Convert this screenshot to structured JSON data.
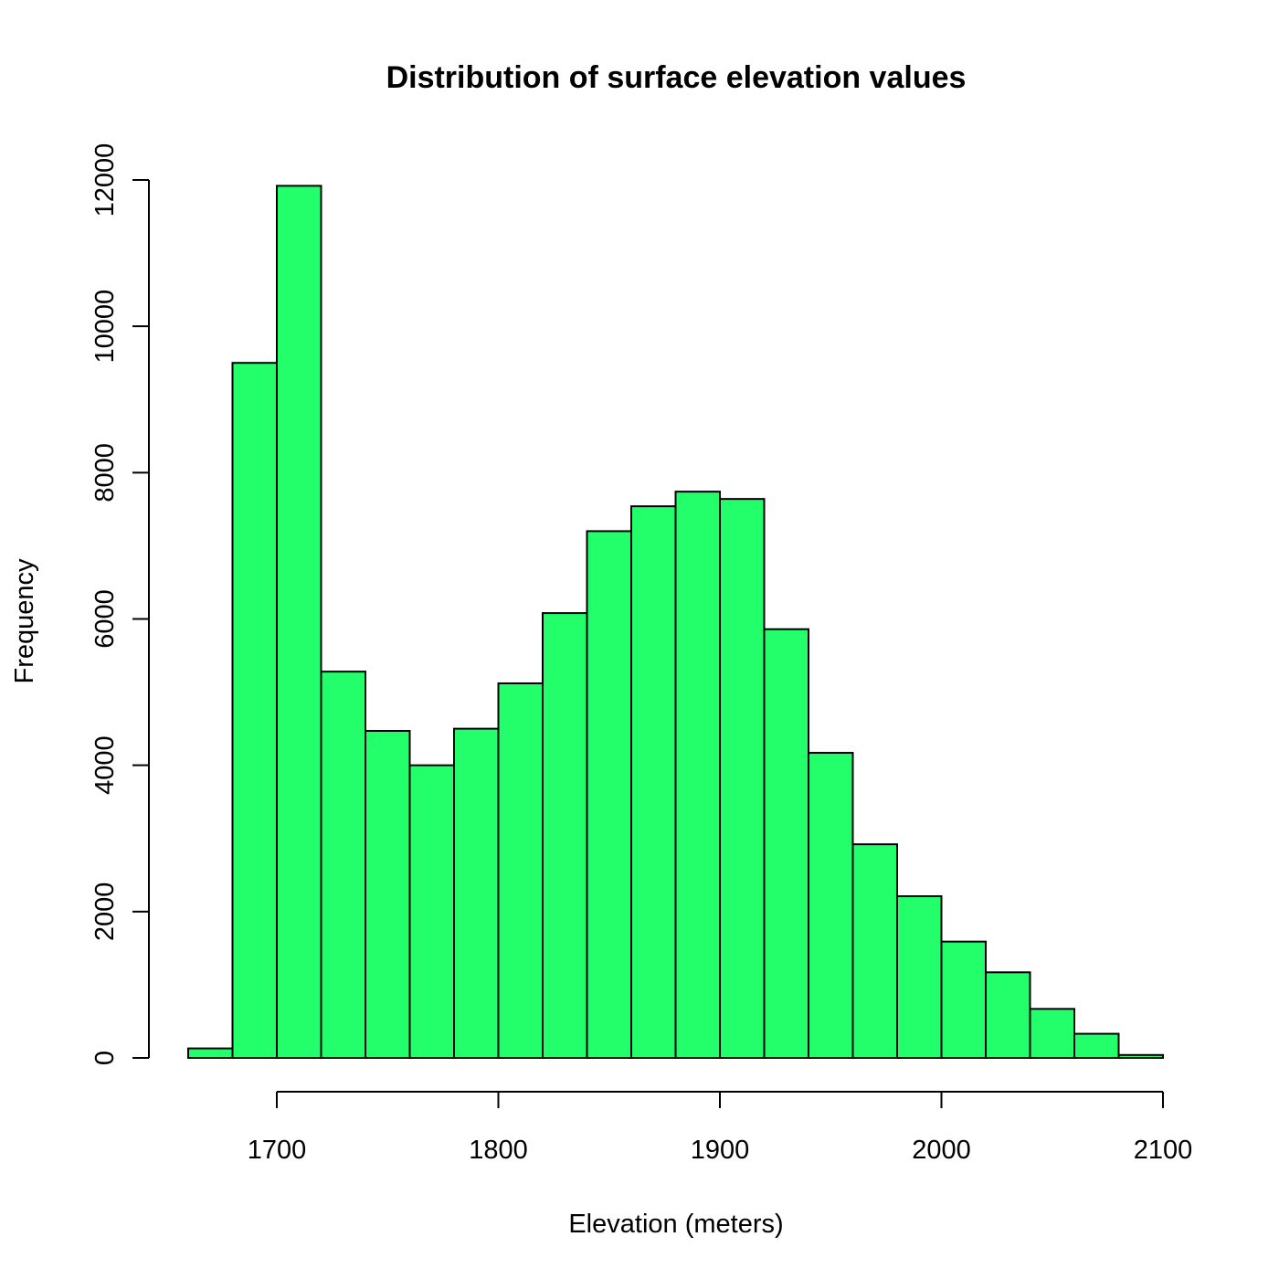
{
  "chart_data": {
    "type": "bar",
    "title": "Distribution of surface elevation values",
    "xlabel": "Elevation (meters)",
    "ylabel": "Frequency",
    "bin_edges": [
      1660,
      1680,
      1700,
      1720,
      1740,
      1760,
      1780,
      1800,
      1820,
      1840,
      1860,
      1880,
      1900,
      1920,
      1940,
      1960,
      1980,
      2000,
      2020,
      2040,
      2060,
      2080,
      2100
    ],
    "values": [
      130,
      9500,
      11920,
      5280,
      4470,
      4000,
      4500,
      5120,
      6080,
      7200,
      7540,
      7740,
      7640,
      5860,
      4170,
      2920,
      2210,
      1590,
      1170,
      670,
      330,
      40
    ],
    "xlim": [
      1700,
      2100
    ],
    "ylim": [
      0,
      12000
    ],
    "x_ticks": [
      1700,
      1800,
      1900,
      2000,
      2100
    ],
    "y_ticks": [
      0,
      2000,
      4000,
      6000,
      8000,
      10000,
      12000
    ],
    "bar_color": "#22ff6b",
    "grid": false
  }
}
